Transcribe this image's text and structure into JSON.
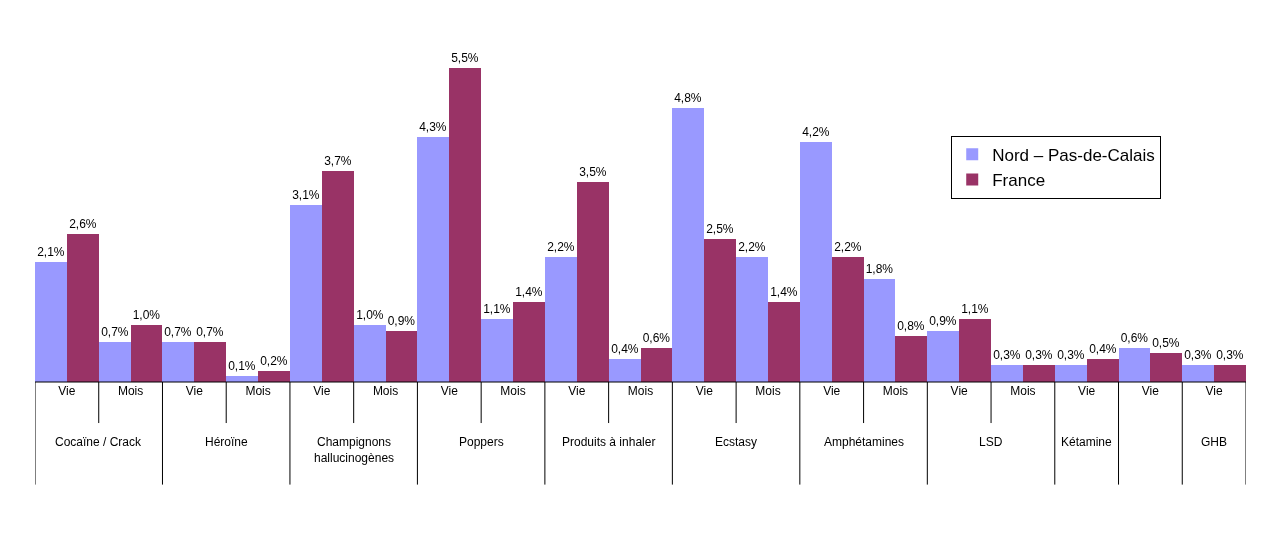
{
  "chart_data": {
    "type": "bar",
    "categories": [
      "Vie",
      "Mois",
      "Vie",
      "Mois",
      "Vie",
      "Mois",
      "Vie",
      "Mois",
      "Vie",
      "Mois",
      "Vie",
      "Mois",
      "Vie",
      "Mois",
      "Vie",
      "Mois",
      "Vie",
      "Vie",
      "Vie"
    ],
    "annotations": [
      "Cocaïne / Crack",
      "Héroïne",
      "Champignons hallucinogènes",
      "Poppers",
      "Produits à inhaler",
      "Ecstasy",
      "Amphétamines",
      "LSD",
      "Kétamine",
      null,
      "GHB"
    ],
    "series": [
      {
        "name": "Nord – Pas-de-Calais",
        "color": "#9999ff",
        "values": [
          2.1,
          0.7,
          0.7,
          0.1,
          3.1,
          1.0,
          4.3,
          1.1,
          2.2,
          0.4,
          4.8,
          2.2,
          4.2,
          1.8,
          0.9,
          0.3,
          0.3,
          0.6,
          0.3
        ],
        "value_labels": [
          "2,1%",
          "0,7%",
          "0,7%",
          "0,1%",
          "3,1%",
          "1,0%",
          "4,3%",
          "1,1%",
          "2,2%",
          "0,4%",
          "4,8%",
          "2,2%",
          "4,2%",
          "1,8%",
          "0,9%",
          "0,3%",
          "0,3%",
          "0,6%",
          "0,3%"
        ]
      },
      {
        "name": "France",
        "color": "#993366",
        "values": [
          2.6,
          1.0,
          0.7,
          0.2,
          3.7,
          0.9,
          5.5,
          1.4,
          3.5,
          0.6,
          2.5,
          1.4,
          2.2,
          0.8,
          1.1,
          0.3,
          0.4,
          0.5,
          0.3
        ],
        "value_labels": [
          "2,6%",
          "1,0%",
          "0,7%",
          "0,2%",
          "3,7%",
          "0,9%",
          "5,5%",
          "1,4%",
          "3,5%",
          "0,6%",
          "2,5%",
          "1,4%",
          "2,2%",
          "0,8%",
          "1,1%",
          "0,3%",
          "0,4%",
          "0,5%",
          "0,3%"
        ]
      }
    ],
    "legend": "top right"
  }
}
